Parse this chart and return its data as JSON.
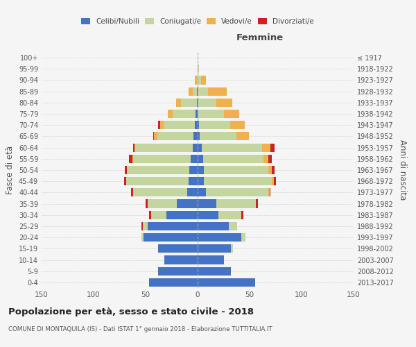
{
  "age_groups": [
    "0-4",
    "5-9",
    "10-14",
    "15-19",
    "20-24",
    "25-29",
    "30-34",
    "35-39",
    "40-44",
    "45-49",
    "50-54",
    "55-59",
    "60-64",
    "65-69",
    "70-74",
    "75-79",
    "80-84",
    "85-89",
    "90-94",
    "95-99",
    "100+"
  ],
  "birth_years": [
    "2013-2017",
    "2008-2012",
    "2003-2007",
    "1998-2002",
    "1993-1997",
    "1988-1992",
    "1983-1987",
    "1978-1982",
    "1973-1977",
    "1968-1972",
    "1963-1967",
    "1958-1962",
    "1953-1957",
    "1948-1952",
    "1943-1947",
    "1938-1942",
    "1933-1937",
    "1928-1932",
    "1923-1927",
    "1918-1922",
    "≤ 1917"
  ],
  "colors": {
    "celibi": "#4472c4",
    "coniugati": "#c5d5a0",
    "vedovi": "#f0b050",
    "divorziati": "#cc2222"
  },
  "males": {
    "celibi": [
      47,
      38,
      32,
      38,
      52,
      48,
      30,
      20,
      10,
      9,
      8,
      7,
      5,
      4,
      3,
      2,
      1,
      1,
      0,
      0,
      0
    ],
    "coniugati": [
      0,
      0,
      0,
      0,
      2,
      5,
      15,
      28,
      52,
      60,
      60,
      55,
      55,
      35,
      30,
      22,
      15,
      4,
      1,
      0,
      0
    ],
    "vedovi": [
      0,
      0,
      0,
      0,
      0,
      0,
      0,
      0,
      0,
      0,
      0,
      1,
      1,
      3,
      3,
      5,
      5,
      4,
      2,
      0,
      0
    ],
    "divorziati": [
      0,
      0,
      0,
      0,
      0,
      1,
      2,
      2,
      2,
      2,
      2,
      3,
      1,
      1,
      2,
      0,
      0,
      0,
      0,
      0,
      0
    ]
  },
  "females": {
    "nubili": [
      55,
      32,
      25,
      32,
      42,
      30,
      20,
      18,
      8,
      6,
      6,
      5,
      4,
      2,
      1,
      0,
      0,
      0,
      0,
      0,
      0
    ],
    "coniugate": [
      0,
      0,
      0,
      2,
      4,
      8,
      22,
      38,
      60,
      65,
      62,
      58,
      58,
      35,
      30,
      25,
      18,
      10,
      3,
      1,
      0
    ],
    "vedove": [
      0,
      0,
      0,
      0,
      0,
      0,
      0,
      0,
      1,
      2,
      3,
      5,
      8,
      12,
      14,
      15,
      15,
      18,
      5,
      0,
      0
    ],
    "divorziate": [
      0,
      0,
      0,
      0,
      0,
      0,
      2,
      2,
      1,
      2,
      3,
      3,
      4,
      0,
      0,
      0,
      0,
      0,
      0,
      0,
      0
    ]
  },
  "title": "Popolazione per età, sesso e stato civile - 2018",
  "subtitle": "COMUNE DI MONTAQUILA (IS) - Dati ISTAT 1° gennaio 2018 - Elaborazione TUTTITALIA.IT",
  "xlabel_right": "Femmine",
  "ylabel_left": "Fasce di età",
  "ylabel_right": "Anni di nascita",
  "xlim": 150,
  "bg_color": "#f5f5f5",
  "grid_color": "#cccccc"
}
